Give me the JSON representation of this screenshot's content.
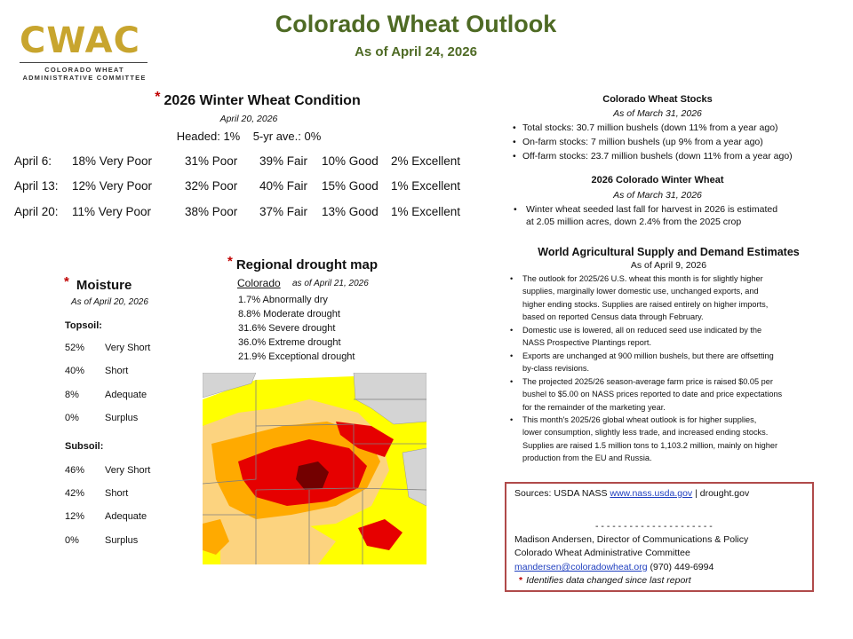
{
  "logo": {
    "mark": "CWAC",
    "line1": "COLORADO WHEAT",
    "line2": "ADMINISTRATIVE COMMITTEE"
  },
  "header": {
    "title": "Colorado Wheat Outlook",
    "subtitle": "As of April 24, 2026"
  },
  "condition": {
    "star": "*",
    "title": "2026 Winter Wheat Condition",
    "date": "April 20, 2026",
    "headed": "Headed: 1%",
    "avg": "5-yr ave.: 0%",
    "rows": [
      {
        "date": "April 6:",
        "very_poor": "18% Very Poor",
        "poor": "31% Poor",
        "fair": "39% Fair",
        "good": "10% Good",
        "excellent": "2% Excellent"
      },
      {
        "date": "April 13:",
        "very_poor": "12% Very Poor",
        "poor": "32% Poor",
        "fair": "40% Fair",
        "good": "15% Good",
        "excellent": "1% Excellent"
      },
      {
        "date": "April 20:",
        "very_poor": "11% Very Poor",
        "poor": "38% Poor",
        "fair": "37% Fair",
        "good": "13% Good",
        "excellent": "1% Excellent"
      }
    ]
  },
  "moisture": {
    "star": "*",
    "title": "Moisture",
    "date": "As of April 20, 2026",
    "topsoil_label": "Topsoil:",
    "topsoil": [
      {
        "pct": "52%",
        "label": "Very Short"
      },
      {
        "pct": "40%",
        "label": "Short"
      },
      {
        "pct": "8%",
        "label": "Adequate"
      },
      {
        "pct": "0%",
        "label": "Surplus"
      }
    ],
    "subsoil_label": "Subsoil:",
    "subsoil": [
      {
        "pct": "46%",
        "label": "Very Short"
      },
      {
        "pct": "42%",
        "label": "Short"
      },
      {
        "pct": "12%",
        "label": "Adequate"
      },
      {
        "pct": "0%",
        "label": "Surplus"
      }
    ]
  },
  "drought": {
    "star": "*",
    "title": "Regional drought map",
    "state": "Colorado",
    "date": "as of April 21, 2026",
    "rows": [
      "1.7%   Abnormally dry",
      "8.8%  Moderate drought",
      "31.6%  Severe drought",
      "36.0%  Extreme drought",
      "21.9%  Exceptional drought"
    ],
    "colors": {
      "abnormally_dry": "#ffff00",
      "moderate": "#fcd37f",
      "severe": "#ffaa00",
      "extreme": "#e60000",
      "exceptional": "#730000",
      "none": "#d4d4d4"
    }
  },
  "stocks": {
    "title": "Colorado Wheat Stocks",
    "date": "As of March 31, 2026",
    "items": [
      "Total stocks: 30.7 million bushels (down 11% from a year ago)",
      "On-farm stocks: 7 million bushels (up 9% from a year ago)",
      "Off-farm stocks: 23.7 million bushels (down 11% from a year ago)"
    ]
  },
  "winter_wheat": {
    "title": "2026 Colorado Winter Wheat",
    "date": "As of March 31, 2026",
    "line1": "Winter wheat seeded last fall for harvest in 2026 is estimated",
    "line2": "at 2.05 million acres, down 2.4% from the 2025 crop"
  },
  "wasde": {
    "title": "World Agricultural Supply and Demand Estimates",
    "date": "As of April 9, 2026",
    "items": [
      [
        "The outlook for 2025/26 U.S. wheat this month is for slightly higher",
        "supplies, marginally lower domestic use, unchanged exports, and",
        "higher ending stocks. Supplies are raised entirely on higher imports,",
        "based on reported Census data through February."
      ],
      [
        "Domestic use is lowered, all on reduced seed use indicated by the",
        "NASS Prospective Plantings report."
      ],
      [
        "Exports are unchanged at 900 million bushels, but there are offsetting",
        "by-class revisions."
      ],
      [
        "The projected 2025/26 season-average farm price is raised $0.05 per",
        "bushel to $5.00 on NASS prices reported to date and price expectations",
        "for the remainder of the marketing year."
      ],
      [
        "This month's 2025/26 global wheat outlook is for higher supplies,",
        "lower consumption, slightly less trade, and increased ending stocks.",
        "Supplies are raised 1.5 million tons to 1,103.2 million, mainly on higher",
        "production from the EU and Russia."
      ]
    ]
  },
  "sources": {
    "prefix": "Sources: USDA NASS ",
    "link1": "www.nass.usda.gov",
    "suffix": " | drought.gov",
    "divider": "- - - - - - - - - - - - - - - - - - - - -",
    "contact": "Madison Andersen, Director of Communications & Policy",
    "org": "Colorado Wheat Administrative Committee",
    "email": "mandersen@coloradowheat.org",
    "phone": " (970) 449-6994",
    "star": "*",
    "note": "Identifies data changed since last report"
  }
}
